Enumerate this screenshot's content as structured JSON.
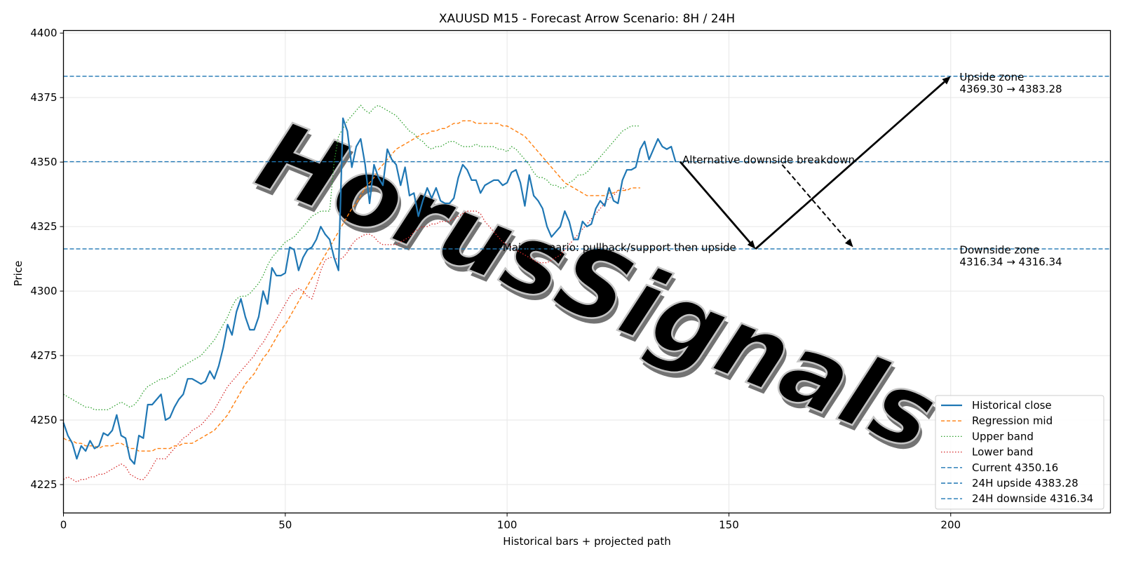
{
  "chart_data": {
    "type": "line",
    "title": "XAUUSD M15 - Forecast Arrow Scenario: 8H / 24H",
    "xlabel": "Historical bars + projected path",
    "ylabel": "Price",
    "xlim": [
      0,
      236
    ],
    "ylim": [
      4214,
      4401
    ],
    "xticks": [
      0,
      50,
      100,
      150,
      200
    ],
    "yticks": [
      4225,
      4250,
      4275,
      4300,
      4325,
      4350,
      4375,
      4400
    ],
    "grid": true,
    "legend_position": "lower-right",
    "watermark": "HorusSignals",
    "colors": {
      "close": "#1f77b4",
      "mid": "#ff7f0e",
      "upper": "#2ca02c",
      "lower": "#d62728",
      "hline": "#1f77b4",
      "arrow": "#000000"
    },
    "close": {
      "name": "Historical close",
      "values": [
        4249,
        4244,
        4241,
        4235,
        4240,
        4238,
        4242,
        4239,
        4240,
        4245,
        4244,
        4246,
        4252,
        4244,
        4243,
        4235,
        4233,
        4244,
        4243,
        4256,
        4256,
        4258,
        4260,
        4250,
        4251,
        4255,
        4258,
        4260,
        4266,
        4266,
        4265,
        4264,
        4265,
        4269,
        4266,
        4271,
        4278,
        4287,
        4283,
        4292,
        4297,
        4290,
        4285,
        4285,
        4290,
        4300,
        4295,
        4309,
        4306,
        4306,
        4307,
        4317,
        4316,
        4308,
        4313,
        4316,
        4317,
        4320,
        4325,
        4322,
        4320,
        4313,
        4308,
        4367,
        4362,
        4348,
        4356,
        4359,
        4349,
        4334,
        4349,
        4344,
        4341,
        4355,
        4351,
        4349,
        4341,
        4348,
        4337,
        4338,
        4329,
        4335,
        4340,
        4336,
        4340,
        4335,
        4334,
        4334,
        4336,
        4344,
        4349,
        4347,
        4343,
        4343,
        4338,
        4341,
        4342,
        4343,
        4343,
        4341,
        4342,
        4346,
        4347,
        4342,
        4333,
        4345,
        4337,
        4335,
        4332,
        4325,
        4321,
        4323,
        4325,
        4331,
        4327,
        4320,
        4320,
        4327,
        4325,
        4326,
        4332,
        4335,
        4333,
        4340,
        4335,
        4334,
        4343,
        4347,
        4347,
        4348,
        4355,
        4358,
        4351,
        4355,
        4359,
        4356,
        4355,
        4356,
        4350
      ]
    },
    "mid": {
      "name": "Regression mid",
      "values": [
        4243,
        4242,
        4242,
        4241,
        4241,
        4240,
        4240,
        4240,
        4239,
        4240,
        4240,
        4240,
        4241,
        4241,
        4240,
        4239,
        4239,
        4238,
        4238,
        4238,
        4238,
        4239,
        4239,
        4239,
        4239,
        4240,
        4240,
        4241,
        4241,
        4241,
        4242,
        4243,
        4244,
        4245,
        4246,
        4248,
        4250,
        4252,
        4255,
        4258,
        4261,
        4264,
        4266,
        4268,
        4271,
        4274,
        4276,
        4279,
        4282,
        4285,
        4287,
        4290,
        4293,
        4296,
        4299,
        4302,
        4305,
        4308,
        4311,
        4314,
        4317,
        4320,
        4323,
        4326,
        4329,
        4332,
        4334,
        4337,
        4340,
        4342,
        4344,
        4347,
        4349,
        4351,
        4353,
        4355,
        4356,
        4357,
        4358,
        4359,
        4360,
        4361,
        4361,
        4362,
        4362,
        4363,
        4363,
        4364,
        4365,
        4365,
        4366,
        4366,
        4366,
        4365,
        4365,
        4365,
        4365,
        4365,
        4365,
        4364,
        4364,
        4363,
        4362,
        4361,
        4360,
        4358,
        4356,
        4354,
        4352,
        4350,
        4348,
        4346,
        4344,
        4342,
        4341,
        4340,
        4339,
        4338,
        4337,
        4337,
        4337,
        4337,
        4337,
        4338,
        4338,
        4339,
        4339,
        4339,
        4340,
        4340,
        4340
      ]
    },
    "upper": {
      "name": "Upper band",
      "values": [
        4260,
        4259,
        4258,
        4257,
        4256,
        4255,
        4255,
        4254,
        4254,
        4254,
        4254,
        4255,
        4256,
        4257,
        4256,
        4255,
        4256,
        4258,
        4261,
        4263,
        4264,
        4265,
        4266,
        4266,
        4267,
        4268,
        4270,
        4271,
        4272,
        4273,
        4274,
        4275,
        4277,
        4279,
        4281,
        4284,
        4287,
        4290,
        4294,
        4297,
        4298,
        4298,
        4299,
        4301,
        4303,
        4306,
        4310,
        4313,
        4315,
        4317,
        4319,
        4320,
        4321,
        4323,
        4325,
        4327,
        4329,
        4330,
        4331,
        4331,
        4331,
        4350,
        4360,
        4363,
        4366,
        4368,
        4370,
        4372,
        4370,
        4369,
        4371,
        4372,
        4371,
        4370,
        4369,
        4368,
        4366,
        4364,
        4362,
        4361,
        4359,
        4358,
        4356,
        4355,
        4356,
        4356,
        4357,
        4358,
        4358,
        4357,
        4356,
        4356,
        4356,
        4357,
        4356,
        4356,
        4356,
        4356,
        4355,
        4355,
        4354,
        4356,
        4355,
        4353,
        4351,
        4349,
        4346,
        4344,
        4344,
        4343,
        4341,
        4341,
        4340,
        4340,
        4342,
        4343,
        4345,
        4345,
        4346,
        4348,
        4350,
        4352,
        4354,
        4356,
        4358,
        4360,
        4362,
        4363,
        4364,
        4364,
        4364
      ]
    },
    "lower": {
      "name": "Lower band",
      "values": [
        4227,
        4228,
        4227,
        4226,
        4227,
        4227,
        4228,
        4228,
        4229,
        4229,
        4230,
        4231,
        4232,
        4233,
        4232,
        4229,
        4228,
        4227,
        4227,
        4229,
        4232,
        4235,
        4235,
        4235,
        4237,
        4239,
        4241,
        4243,
        4244,
        4246,
        4247,
        4248,
        4250,
        4252,
        4254,
        4257,
        4260,
        4263,
        4265,
        4267,
        4269,
        4271,
        4273,
        4275,
        4278,
        4280,
        4283,
        4286,
        4289,
        4292,
        4295,
        4298,
        4300,
        4301,
        4300,
        4298,
        4297,
        4302,
        4308,
        4312,
        4313,
        4313,
        4312,
        4313,
        4315,
        4318,
        4320,
        4321,
        4322,
        4322,
        4321,
        4319,
        4318,
        4318,
        4318,
        4318,
        4319,
        4320,
        4321,
        4323,
        4324,
        4325,
        4325,
        4326,
        4326,
        4327,
        4327,
        4327,
        4328,
        4329,
        4330,
        4331,
        4331,
        4331,
        4330,
        4327,
        4325,
        4323,
        4321,
        4319,
        4318,
        4317,
        4316,
        4315,
        4314,
        4313,
        4312,
        4311,
        4311,
        4311,
        4312,
        4313,
        4314,
        4316,
        4318,
        4320,
        4322,
        4324,
        4326,
        4328,
        4330,
        4332,
        4334,
        4336,
        4337,
        4339,
        4340,
        4339
      ]
    },
    "hlines": [
      {
        "name": "Current 4350.16",
        "y": 4350.16
      },
      {
        "name": "24H upside 4383.28",
        "y": 4383.28
      },
      {
        "name": "24H downside 4316.34",
        "y": 4316.34
      }
    ],
    "arrows": [
      {
        "from": [
          139,
          4350.16
        ],
        "to": [
          156,
          4316.34
        ],
        "style": "solid"
      },
      {
        "from": [
          156,
          4316.34
        ],
        "to": [
          200,
          4383.28
        ],
        "style": "solid"
      },
      {
        "from": [
          162,
          4349
        ],
        "to": [
          178,
          4317
        ],
        "style": "dashed"
      }
    ],
    "annotations": [
      {
        "text": "Main scenario: pullback/support then upside",
        "x": 99,
        "y": 4315.5
      },
      {
        "text": "Alternative downside breakdown",
        "x": 139.5,
        "y": 4349.5
      },
      {
        "text": "Upside zone",
        "x": 202,
        "y": 4381.5
      },
      {
        "text": "4369.30 → 4383.28",
        "x": 202,
        "y": 4377
      },
      {
        "text": "Downside zone",
        "x": 202,
        "y": 4314.5
      },
      {
        "text": "4316.34 → 4316.34",
        "x": 202,
        "y": 4310
      }
    ]
  }
}
